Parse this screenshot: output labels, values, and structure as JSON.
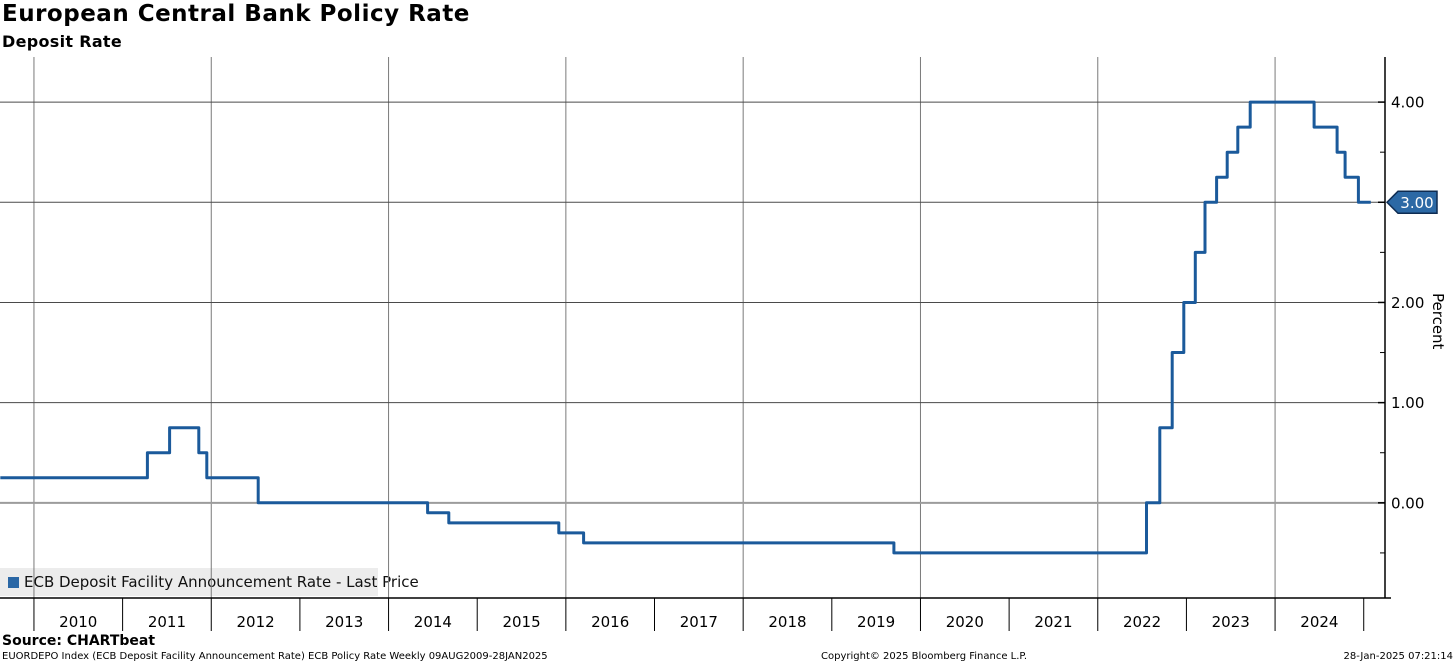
{
  "header": {
    "title": "European Central Bank Policy Rate",
    "subtitle": "Deposit Rate"
  },
  "legend": {
    "swatch_icon": "blue-square",
    "label": "ECB Deposit Facility Announcement Rate - Last Price"
  },
  "axis_right": {
    "unit_label": "Percent",
    "last_price_label": "3.00"
  },
  "footer": {
    "source": "Source: CHARTbeat",
    "description": "EUORDEPO Index (ECB Deposit Facility Announcement Rate) ECB Policy Rate  Weekly 09AUG2009-28JAN2025",
    "copyright": "Copyright© 2025 Bloomberg Finance L.P.",
    "timestamp": "28-Jan-2025 07:21:14"
  },
  "colors": {
    "line": "#1b5a9b",
    "badge_fill": "#2c69a5",
    "badge_border": "#0e2c52",
    "badge_text": "#ffffff",
    "grid_vertical": "#7a7a7a",
    "grid_horizontal": "#4a4a4a",
    "zero_line": "#9c9c9c",
    "axis": "#000000",
    "legend_bg": "#ececec"
  },
  "chart_data": {
    "type": "line",
    "title": "European Central Bank Policy Rate",
    "subtitle": "Deposit Rate",
    "series_name": "ECB Deposit Facility Announcement Rate - Last Price",
    "ylabel": "Percent",
    "xlim": [
      2009.617,
      2025.24
    ],
    "ylim": [
      -0.95,
      4.45
    ],
    "grid": true,
    "legend_position": "bottom-left",
    "last_price": 3.0,
    "x_tick_years": [
      2010,
      2011,
      2012,
      2013,
      2014,
      2015,
      2016,
      2017,
      2018,
      2019,
      2020,
      2021,
      2022,
      2023,
      2024,
      2025
    ],
    "x_tick_labels": [
      "2010",
      "2011",
      "2012",
      "2013",
      "2014",
      "2015",
      "2016",
      "2017",
      "2018",
      "2019",
      "2020",
      "2021",
      "2022",
      "2023",
      "2024"
    ],
    "v_gridline_years": [
      2010,
      2012,
      2014,
      2016,
      2018,
      2020,
      2022,
      2024
    ],
    "h_gridline_values": [
      4,
      3,
      2,
      1,
      0
    ],
    "y_major_ticks": [
      {
        "v": 4,
        "label": "4.00"
      },
      {
        "v": 3,
        "label": "3.00"
      },
      {
        "v": 2,
        "label": "2.00"
      },
      {
        "v": 1,
        "label": "1.00"
      },
      {
        "v": 0,
        "label": "0.00"
      }
    ],
    "y_minor_ticks": [
      3.5,
      2.5,
      1.5,
      0.5,
      -0.5
    ],
    "steps": [
      {
        "date": "Aug-2009",
        "t": 2009.62,
        "rate": 0.25
      },
      {
        "date": "Apr-2011",
        "t": 2011.28,
        "rate": 0.5
      },
      {
        "date": "Jul-2011",
        "t": 2011.53,
        "rate": 0.75
      },
      {
        "date": "Nov-2011",
        "t": 2011.86,
        "rate": 0.5
      },
      {
        "date": "Dec-2011",
        "t": 2011.95,
        "rate": 0.25
      },
      {
        "date": "Jul-2012",
        "t": 2012.53,
        "rate": 0.0
      },
      {
        "date": "Jun-2014",
        "t": 2014.44,
        "rate": -0.1
      },
      {
        "date": "Sep-2014",
        "t": 2014.68,
        "rate": -0.2
      },
      {
        "date": "Dec-2015",
        "t": 2015.92,
        "rate": -0.3
      },
      {
        "date": "Mar-2016",
        "t": 2016.2,
        "rate": -0.4
      },
      {
        "date": "Sep-2019",
        "t": 2019.7,
        "rate": -0.5
      },
      {
        "date": "Jul-2022",
        "t": 2022.55,
        "rate": 0.0
      },
      {
        "date": "Sep-2022",
        "t": 2022.7,
        "rate": 0.75
      },
      {
        "date": "Nov-2022",
        "t": 2022.84,
        "rate": 1.5
      },
      {
        "date": "Dec-2022",
        "t": 2022.97,
        "rate": 2.0
      },
      {
        "date": "Feb-2023",
        "t": 2023.1,
        "rate": 2.5
      },
      {
        "date": "Mar-2023",
        "t": 2023.21,
        "rate": 3.0
      },
      {
        "date": "May-2023",
        "t": 2023.34,
        "rate": 3.25
      },
      {
        "date": "Jun-2023",
        "t": 2023.46,
        "rate": 3.5
      },
      {
        "date": "Aug-2023",
        "t": 2023.58,
        "rate": 3.75
      },
      {
        "date": "Sep-2023",
        "t": 2023.72,
        "rate": 4.0
      },
      {
        "date": "Jun-2024",
        "t": 2024.44,
        "rate": 3.75
      },
      {
        "date": "Sep-2024",
        "t": 2024.7,
        "rate": 3.5
      },
      {
        "date": "Oct-2024",
        "t": 2024.79,
        "rate": 3.25
      },
      {
        "date": "Dec-2024",
        "t": 2024.94,
        "rate": 3.0
      }
    ],
    "t_end": 2025.08
  }
}
